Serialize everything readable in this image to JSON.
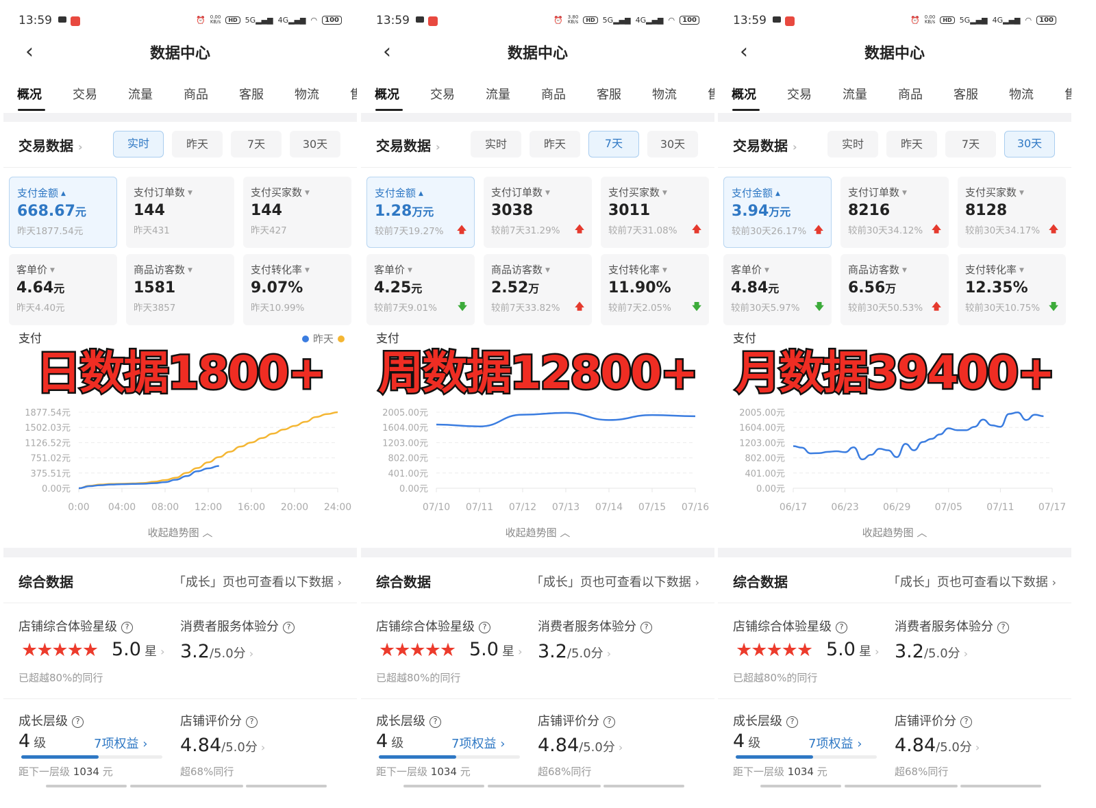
{
  "panels": [
    {
      "status": {
        "time": "13:59",
        "speed": "0.00",
        "speed_unit": "KB/s",
        "net": [
          "HD",
          "5G",
          "4G"
        ],
        "battery": "100"
      },
      "header": {
        "title": "数据中心",
        "back_icon": "chevron-left"
      },
      "tabs": [
        "概况",
        "交易",
        "流量",
        "商品",
        "客服",
        "物流",
        "售"
      ],
      "trade": {
        "title": "交易数据",
        "ranges": [
          "实时",
          "昨天",
          "7天",
          "30天"
        ],
        "active": 0
      },
      "metrics": [
        {
          "label": "支付金额",
          "value": "668.67",
          "unit": "元",
          "sub": "昨天1877.54元",
          "trend": "",
          "active": true
        },
        {
          "label": "支付订单数",
          "value": "144",
          "unit": "",
          "sub": "昨天431",
          "trend": ""
        },
        {
          "label": "支付买家数",
          "value": "144",
          "unit": "",
          "sub": "昨天427",
          "trend": ""
        },
        {
          "label": "客单价",
          "value": "4.64",
          "unit": "元",
          "sub": "昨天4.40元",
          "trend": ""
        },
        {
          "label": "商品访客数",
          "value": "1581",
          "unit": "",
          "sub": "昨天3857",
          "trend": ""
        },
        {
          "label": "支付转化率",
          "value": "9.07%",
          "unit": "",
          "sub": "昨天10.99%",
          "trend": ""
        }
      ],
      "chart": {
        "type": "line",
        "title": "支付",
        "legend": [
          {
            "label": "",
            "color": "#3b7de0"
          },
          {
            "label": "昨天",
            "color": "#f4b633"
          }
        ],
        "yticks": [
          "0.00元",
          "375.51元",
          "751.02元",
          "1126.52元",
          "1502.03元",
          "1877.54元"
        ],
        "ylim": [
          0,
          1877.54
        ],
        "xticks": [
          "0:00",
          "04:00",
          "08:00",
          "12:00",
          "16:00",
          "20:00",
          "24:00"
        ],
        "xlim": [
          0,
          24
        ],
        "series": [
          {
            "color": "#f4b633",
            "x": [
              0,
              1,
              2,
              3,
              4,
              5,
              6,
              7,
              8,
              9,
              10,
              11,
              12,
              13,
              14,
              15,
              16,
              17,
              18,
              19,
              20,
              21,
              22,
              23,
              24
            ],
            "y": [
              0,
              60,
              90,
              105,
              110,
              118,
              128,
              160,
              200,
              260,
              380,
              500,
              640,
              770,
              900,
              1030,
              1130,
              1240,
              1350,
              1450,
              1540,
              1640,
              1760,
              1830,
              1877
            ]
          },
          {
            "color": "#3b7de0",
            "x": [
              0,
              1,
              2,
              3,
              4,
              5,
              6,
              7,
              8,
              9,
              10,
              11,
              12,
              13
            ],
            "y": [
              0,
              50,
              75,
              90,
              100,
              105,
              110,
              125,
              150,
              210,
              300,
              420,
              490,
              550
            ]
          }
        ]
      },
      "collapse": "收起趋势图",
      "overlay": "日数据1800+",
      "summary": {
        "title": "综合数据",
        "link": "「成长」页也可查看以下数据",
        "star_label": "店铺综合体验星级",
        "stars": 5,
        "star_value": "5.0",
        "star_unit": "星",
        "star_note": "已超越80%的同行",
        "service_label": "消费者服务体验分",
        "service_value": "3.2",
        "service_unit": "/5.0分",
        "growth_label": "成长层级",
        "growth_value": "4",
        "growth_unit": "级",
        "benefits": "7项权益",
        "growth_progress": 0.55,
        "growth_note": "距下一层级",
        "growth_gap": "1034",
        "growth_gap_unit": "元",
        "review_label": "店铺评价分",
        "review_value": "4.84",
        "review_unit": "/5.0分",
        "review_note": "超68%同行"
      }
    },
    {
      "status": {
        "time": "13:59",
        "speed": "3.80",
        "speed_unit": "KB/s",
        "net": [
          "HD",
          "5G",
          "4G"
        ],
        "battery": "100"
      },
      "header": {
        "title": "数据中心",
        "back_icon": "chevron-left"
      },
      "tabs": [
        "概况",
        "交易",
        "流量",
        "商品",
        "客服",
        "物流",
        "售"
      ],
      "trade": {
        "title": "交易数据",
        "ranges": [
          "实时",
          "昨天",
          "7天",
          "30天"
        ],
        "active": 2
      },
      "metrics": [
        {
          "label": "支付金额",
          "value": "1.28",
          "unit": "万元",
          "sub": "较前7天19.27%",
          "trend": "up",
          "active": true
        },
        {
          "label": "支付订单数",
          "value": "3038",
          "unit": "",
          "sub": "较前7天31.29%",
          "trend": "up"
        },
        {
          "label": "支付买家数",
          "value": "3011",
          "unit": "",
          "sub": "较前7天31.08%",
          "trend": "up"
        },
        {
          "label": "客单价",
          "value": "4.25",
          "unit": "元",
          "sub": "较前7天9.01%",
          "trend": "down"
        },
        {
          "label": "商品访客数",
          "value": "2.52",
          "unit": "万",
          "sub": "较前7天33.82%",
          "trend": "up"
        },
        {
          "label": "支付转化率",
          "value": "11.90%",
          "unit": "",
          "sub": "较前7天2.05%",
          "trend": "down"
        }
      ],
      "chart": {
        "type": "line",
        "title": "支付",
        "legend": [],
        "yticks": [
          "0.00元",
          "401.00元",
          "802.00元",
          "1203.00元",
          "1604.00元",
          "2005.00元"
        ],
        "ylim": [
          0,
          2005
        ],
        "xticks": [
          "07/10",
          "07/11",
          "07/12",
          "07/13",
          "07/14",
          "07/15",
          "07/16"
        ],
        "xlim": [
          0,
          6
        ],
        "series": [
          {
            "color": "#3b7de0",
            "x": [
              0,
              1,
              2,
              3,
              4,
              5,
              6
            ],
            "y": [
              1680,
              1630,
              1940,
              1990,
              1800,
              1930,
              1900
            ]
          }
        ]
      },
      "collapse": "收起趋势图",
      "overlay": "周数据12800+",
      "summary": {
        "title": "综合数据",
        "link": "「成长」页也可查看以下数据",
        "star_label": "店铺综合体验星级",
        "stars": 5,
        "star_value": "5.0",
        "star_unit": "星",
        "star_note": "已超越80%的同行",
        "service_label": "消费者服务体验分",
        "service_value": "3.2",
        "service_unit": "/5.0分",
        "growth_label": "成长层级",
        "growth_value": "4",
        "growth_unit": "级",
        "benefits": "7项权益",
        "growth_progress": 0.55,
        "growth_note": "距下一层级",
        "growth_gap": "1034",
        "growth_gap_unit": "元",
        "review_label": "店铺评价分",
        "review_value": "4.84",
        "review_unit": "/5.0分",
        "review_note": "超68%同行"
      }
    },
    {
      "status": {
        "time": "13:59",
        "speed": "0.00",
        "speed_unit": "KB/s",
        "net": [
          "HD",
          "5G",
          "4G"
        ],
        "battery": "100"
      },
      "header": {
        "title": "数据中心",
        "back_icon": "chevron-left"
      },
      "tabs": [
        "概况",
        "交易",
        "流量",
        "商品",
        "客服",
        "物流",
        "售"
      ],
      "trade": {
        "title": "交易数据",
        "ranges": [
          "实时",
          "昨天",
          "7天",
          "30天"
        ],
        "active": 3
      },
      "metrics": [
        {
          "label": "支付金额",
          "value": "3.94",
          "unit": "万元",
          "sub": "较前30天26.17%",
          "trend": "up",
          "active": true
        },
        {
          "label": "支付订单数",
          "value": "8216",
          "unit": "",
          "sub": "较前30天34.12%",
          "trend": "up"
        },
        {
          "label": "支付买家数",
          "value": "8128",
          "unit": "",
          "sub": "较前30天34.17%",
          "trend": "up"
        },
        {
          "label": "客单价",
          "value": "4.84",
          "unit": "元",
          "sub": "较前30天5.97%",
          "trend": "down"
        },
        {
          "label": "商品访客数",
          "value": "6.56",
          "unit": "万",
          "sub": "较前30天50.53%",
          "trend": "up"
        },
        {
          "label": "支付转化率",
          "value": "12.35%",
          "unit": "",
          "sub": "较前30天10.75%",
          "trend": "down"
        }
      ],
      "chart": {
        "type": "line",
        "title": "支付",
        "legend": [],
        "yticks": [
          "0.00元",
          "401.00元",
          "802.00元",
          "1203.00元",
          "1604.00元",
          "2005.00元"
        ],
        "ylim": [
          0,
          2005
        ],
        "xticks": [
          "06/17",
          "06/23",
          "06/29",
          "07/05",
          "07/11",
          "07/17"
        ],
        "xlim": [
          0,
          30
        ],
        "series": [
          {
            "color": "#3b7de0",
            "x": [
              0,
              1,
              2,
              3,
              4,
              5,
              6,
              7,
              8,
              9,
              10,
              11,
              12,
              13,
              14,
              15,
              16,
              17,
              18,
              19,
              20,
              21,
              22,
              23,
              24,
              25,
              26,
              27,
              28,
              29
            ],
            "y": [
              1110,
              1070,
              920,
              925,
              960,
              975,
              950,
              1080,
              760,
              880,
              1040,
              1000,
              820,
              1170,
              1000,
              1220,
              1300,
              1420,
              1580,
              1530,
              1530,
              1620,
              1810,
              1660,
              1620,
              1960,
              2000,
              1800,
              1940,
              1900
            ]
          }
        ]
      },
      "collapse": "收起趋势图",
      "overlay": "月数据39400+",
      "summary": {
        "title": "综合数据",
        "link": "「成长」页也可查看以下数据",
        "star_label": "店铺综合体验星级",
        "stars": 5,
        "star_value": "5.0",
        "star_unit": "星",
        "star_note": "已超越80%的同行",
        "service_label": "消费者服务体验分",
        "service_value": "3.2",
        "service_unit": "/5.0分",
        "growth_label": "成长层级",
        "growth_value": "4",
        "growth_unit": "级",
        "benefits": "7项权益",
        "growth_progress": 0.55,
        "growth_note": "距下一层级",
        "growth_gap": "1034",
        "growth_gap_unit": "元",
        "review_label": "店铺评价分",
        "review_value": "4.84",
        "review_unit": "/5.0分",
        "review_note": "超68%同行"
      }
    }
  ]
}
